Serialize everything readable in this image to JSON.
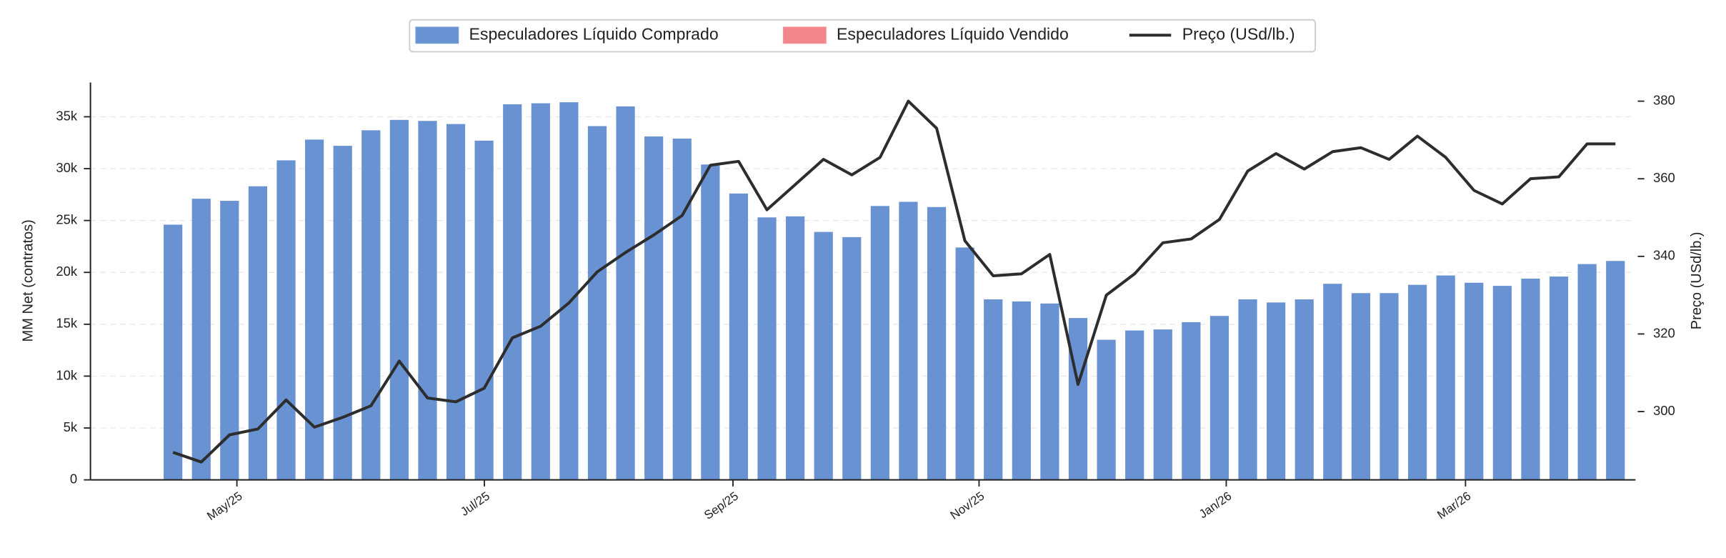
{
  "chart_data": {
    "type": "bar",
    "ylabel": "MM Net (contratos)",
    "y2label": "Preço (USd/lb.)",
    "legend": "upper center",
    "grid": true,
    "categories": [
      null,
      null,
      null,
      null,
      null,
      null,
      null,
      null,
      null,
      null,
      null,
      null,
      null,
      null,
      null,
      null,
      null,
      null,
      null,
      null,
      null,
      null,
      null,
      null,
      null,
      null,
      null,
      null,
      null,
      null,
      null,
      null,
      null,
      null,
      null,
      null,
      null,
      null,
      null,
      null,
      null,
      null,
      null,
      null,
      null,
      null,
      null,
      null,
      null,
      null,
      null,
      null
    ],
    "xticks": [
      {
        "value": 2.26,
        "label": "May/25"
      },
      {
        "value": 11.01,
        "label": "Jul/25"
      },
      {
        "value": 19.8,
        "label": "Sep/25"
      },
      {
        "value": 28.5,
        "label": "Nov/25"
      },
      {
        "value": 37.24,
        "label": "Jan/26"
      },
      {
        "value": 45.7,
        "label": "Mar/26"
      }
    ],
    "ylim": [
      0,
      38300
    ],
    "yticks": [
      0,
      {
        "value": 5000,
        "label": "5k"
      },
      {
        "value": 10000,
        "label": "10k"
      },
      {
        "value": 15000,
        "label": "15k"
      },
      {
        "value": 20000,
        "label": "20k"
      },
      {
        "value": 25000,
        "label": "25k"
      },
      {
        "value": 30000,
        "label": "30k"
      },
      {
        "value": 35000,
        "label": "35k"
      }
    ],
    "y2lim": [
      282.4,
      384.8
    ],
    "y2ticks": [
      300,
      320,
      340,
      360,
      380
    ],
    "series": [
      {
        "name": "Especuladores Líquido Comprado",
        "color": "#6892d1",
        "type": "bar",
        "values": [
          24600,
          27100,
          26900,
          28300,
          30800,
          32800,
          32200,
          33700,
          34700,
          34600,
          34300,
          32700,
          36200,
          36300,
          36400,
          34100,
          36000,
          33100,
          32900,
          30400,
          27600,
          25300,
          25400,
          23900,
          23400,
          26400,
          26800,
          26300,
          22400,
          17400,
          17200,
          17000,
          15600,
          13500,
          14400,
          14500,
          15200,
          15800,
          17400,
          17100,
          17400,
          18900,
          18000,
          18000,
          18800,
          19700,
          19000,
          18700,
          19400,
          19600,
          20800,
          21100
        ]
      },
      {
        "name": "Especuladores Líquido Vendido",
        "color": "#f3868a",
        "type": "bar"
      },
      {
        "name": "Preço (USd/lb.)",
        "color": "#2d2d2d",
        "type": "line",
        "axis": "y2",
        "values": [
          289.5,
          287,
          294,
          295.5,
          303,
          296,
          298.5,
          301.5,
          313,
          303.5,
          302.5,
          306,
          319,
          322,
          328,
          336,
          341,
          345.5,
          350.5,
          363.5,
          364.5,
          352,
          358.5,
          365,
          361,
          365.5,
          380,
          373,
          344,
          335,
          335.5,
          340.5,
          307,
          330,
          335.5,
          343.5,
          344.5,
          349.5,
          362,
          366.5,
          362.5,
          367,
          368,
          365,
          371,
          365.5,
          357,
          353.5,
          360,
          360.5,
          369,
          369
        ]
      }
    ]
  }
}
